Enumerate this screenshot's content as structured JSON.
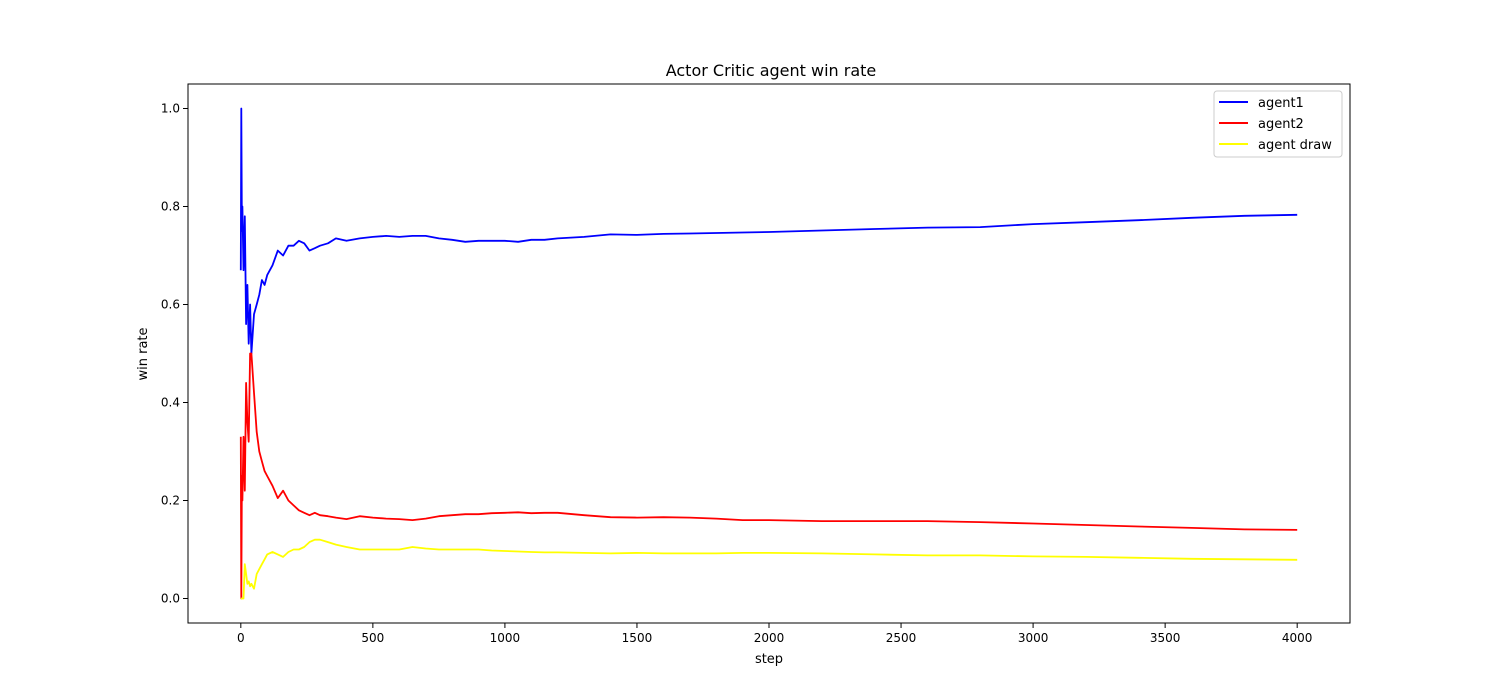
{
  "chart_data": {
    "type": "line",
    "title": "Actor Critic agent win rate",
    "xlabel": "step",
    "ylabel": "win rate",
    "xlim": [
      -200,
      4200
    ],
    "ylim": [
      -0.05,
      1.05
    ],
    "xticks": [
      0,
      500,
      1000,
      1500,
      2000,
      2500,
      3000,
      3500,
      4000
    ],
    "xtick_labels": [
      "0",
      "500",
      "1000",
      "1500",
      "2000",
      "2500",
      "3000",
      "3500",
      "4000"
    ],
    "yticks": [
      0.0,
      0.2,
      0.4,
      0.6,
      0.8,
      1.0
    ],
    "ytick_labels": [
      "0.0",
      "0.2",
      "0.4",
      "0.6",
      "0.8",
      "1.0"
    ],
    "grid": false,
    "legend": "top-right",
    "series": [
      {
        "name": "agent1",
        "color": "#0000ff",
        "x": [
          0,
          2,
          4,
          6,
          10,
          15,
          20,
          25,
          30,
          35,
          40,
          50,
          60,
          70,
          80,
          90,
          100,
          120,
          140,
          160,
          180,
          200,
          220,
          240,
          260,
          280,
          300,
          330,
          360,
          400,
          450,
          500,
          550,
          600,
          650,
          700,
          750,
          800,
          850,
          900,
          950,
          1000,
          1050,
          1100,
          1150,
          1200,
          1300,
          1400,
          1500,
          1600,
          1700,
          1800,
          1900,
          2000,
          2200,
          2400,
          2600,
          2800,
          3000,
          3200,
          3400,
          3600,
          3800,
          4000
        ],
        "y": [
          0.67,
          1.0,
          0.75,
          0.8,
          0.67,
          0.78,
          0.56,
          0.64,
          0.52,
          0.6,
          0.5,
          0.58,
          0.6,
          0.62,
          0.65,
          0.64,
          0.66,
          0.68,
          0.71,
          0.7,
          0.72,
          0.72,
          0.73,
          0.725,
          0.71,
          0.715,
          0.72,
          0.725,
          0.735,
          0.73,
          0.735,
          0.738,
          0.74,
          0.738,
          0.74,
          0.74,
          0.735,
          0.732,
          0.728,
          0.73,
          0.73,
          0.73,
          0.728,
          0.732,
          0.732,
          0.735,
          0.738,
          0.743,
          0.742,
          0.744,
          0.745,
          0.746,
          0.747,
          0.748,
          0.751,
          0.754,
          0.757,
          0.758,
          0.764,
          0.768,
          0.772,
          0.777,
          0.781,
          0.783
        ]
      },
      {
        "name": "agent2",
        "color": "#ff0000",
        "x": [
          0,
          2,
          4,
          6,
          10,
          15,
          20,
          25,
          30,
          35,
          40,
          50,
          60,
          70,
          80,
          90,
          100,
          120,
          140,
          160,
          180,
          200,
          220,
          240,
          260,
          280,
          300,
          330,
          360,
          400,
          450,
          500,
          550,
          600,
          650,
          700,
          750,
          800,
          850,
          900,
          950,
          1000,
          1050,
          1100,
          1150,
          1200,
          1300,
          1400,
          1500,
          1600,
          1700,
          1800,
          1900,
          2000,
          2200,
          2400,
          2600,
          2800,
          3000,
          3200,
          3400,
          3600,
          3800,
          4000
        ],
        "y": [
          0.33,
          0.0,
          0.25,
          0.2,
          0.33,
          0.22,
          0.44,
          0.36,
          0.32,
          0.5,
          0.5,
          0.42,
          0.34,
          0.3,
          0.28,
          0.26,
          0.25,
          0.23,
          0.205,
          0.22,
          0.2,
          0.19,
          0.18,
          0.175,
          0.17,
          0.175,
          0.17,
          0.168,
          0.165,
          0.162,
          0.168,
          0.165,
          0.163,
          0.162,
          0.16,
          0.163,
          0.168,
          0.17,
          0.172,
          0.172,
          0.174,
          0.175,
          0.176,
          0.174,
          0.175,
          0.175,
          0.17,
          0.166,
          0.165,
          0.166,
          0.165,
          0.163,
          0.16,
          0.16,
          0.158,
          0.158,
          0.158,
          0.156,
          0.153,
          0.15,
          0.147,
          0.144,
          0.141,
          0.14
        ]
      },
      {
        "name": "agent draw",
        "color": "#ffff00",
        "x": [
          0,
          2,
          4,
          6,
          10,
          15,
          20,
          25,
          30,
          35,
          40,
          50,
          60,
          70,
          80,
          90,
          100,
          120,
          140,
          160,
          180,
          200,
          220,
          240,
          260,
          280,
          300,
          330,
          360,
          400,
          450,
          500,
          550,
          600,
          650,
          700,
          750,
          800,
          850,
          900,
          950,
          1000,
          1050,
          1100,
          1150,
          1200,
          1300,
          1400,
          1500,
          1600,
          1700,
          1800,
          1900,
          2000,
          2200,
          2400,
          2600,
          2800,
          3000,
          3200,
          3400,
          3600,
          3800,
          4000
        ],
        "y": [
          0.0,
          0.0,
          0.0,
          0.0,
          0.0,
          0.07,
          0.05,
          0.03,
          0.035,
          0.025,
          0.03,
          0.02,
          0.05,
          0.06,
          0.07,
          0.08,
          0.09,
          0.095,
          0.09,
          0.085,
          0.095,
          0.1,
          0.1,
          0.105,
          0.115,
          0.12,
          0.12,
          0.115,
          0.11,
          0.105,
          0.1,
          0.1,
          0.1,
          0.1,
          0.105,
          0.102,
          0.1,
          0.1,
          0.1,
          0.1,
          0.098,
          0.097,
          0.096,
          0.095,
          0.094,
          0.094,
          0.093,
          0.092,
          0.093,
          0.092,
          0.092,
          0.092,
          0.093,
          0.093,
          0.092,
          0.09,
          0.088,
          0.088,
          0.086,
          0.085,
          0.083,
          0.081,
          0.08,
          0.079
        ]
      }
    ]
  }
}
